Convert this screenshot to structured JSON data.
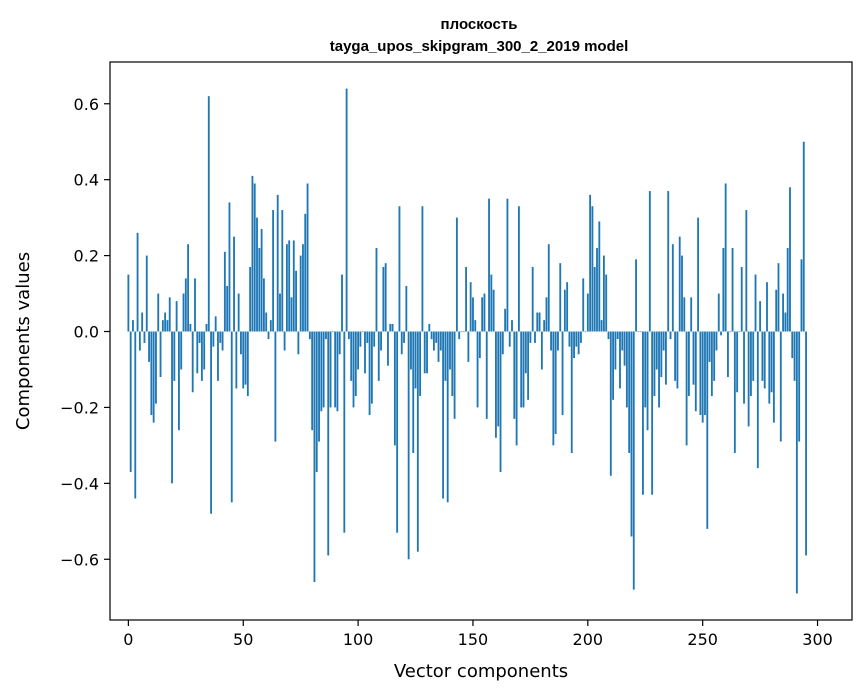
{
  "chart_data": {
    "type": "bar",
    "title": "плоскость",
    "subtitle": "tayga_upos_skipgram_300_2_2019 model",
    "xlabel": "Vector components",
    "ylabel": "Components values",
    "xlim": [
      -8,
      315
    ],
    "ylim": [
      -0.76,
      0.71
    ],
    "xticks": [
      0,
      50,
      100,
      150,
      200,
      250,
      300
    ],
    "xtick_labels": [
      "0",
      "50",
      "100",
      "150",
      "200",
      "250",
      "300"
    ],
    "yticks": [
      -0.6,
      -0.4,
      -0.2,
      0.0,
      0.2,
      0.4,
      0.6
    ],
    "ytick_labels": [
      "−0.6",
      "−0.4",
      "−0.2",
      "0.0",
      "0.2",
      "0.4",
      "0.6"
    ],
    "bar_color": "#1f77b4",
    "grid": false,
    "values": [
      0.15,
      -0.37,
      0.03,
      -0.44,
      0.26,
      -0.05,
      0.05,
      -0.03,
      0.2,
      -0.08,
      -0.22,
      -0.24,
      -0.19,
      0.1,
      -0.12,
      0.03,
      0.05,
      0.03,
      0.09,
      -0.4,
      -0.13,
      0.08,
      -0.26,
      -0.1,
      0.1,
      0.14,
      0.23,
      0.02,
      -0.16,
      0.14,
      -0.11,
      -0.03,
      -0.13,
      -0.1,
      0.02,
      0.62,
      -0.48,
      -0.04,
      0.04,
      -0.13,
      -0.03,
      -0.05,
      0.21,
      0.12,
      0.34,
      -0.45,
      0.25,
      -0.15,
      0.1,
      -0.06,
      -0.15,
      -0.14,
      -0.17,
      0.17,
      0.41,
      0.39,
      0.3,
      0.22,
      0.27,
      0.14,
      0.05,
      -0.02,
      0.03,
      0.32,
      -0.29,
      0.36,
      0.1,
      0.32,
      -0.05,
      0.23,
      0.24,
      0.09,
      0.24,
      0.16,
      -0.06,
      0.2,
      0.23,
      0.31,
      0.39,
      -0.02,
      -0.26,
      -0.66,
      -0.37,
      -0.29,
      -0.21,
      -0.2,
      -0.02,
      -0.59,
      -0.2,
      0.0,
      -0.2,
      -0.21,
      -0.06,
      0.15,
      -0.53,
      0.64,
      -0.02,
      -0.13,
      -0.2,
      -0.17,
      -0.1,
      -0.04,
      0.0,
      -0.11,
      -0.03,
      -0.22,
      -0.19,
      -0.04,
      0.22,
      -0.13,
      -0.05,
      0.17,
      0.18,
      -0.09,
      0.02,
      0.02,
      -0.3,
      -0.53,
      0.33,
      -0.06,
      -0.03,
      0.12,
      -0.6,
      -0.1,
      -0.32,
      -0.15,
      -0.58,
      -0.17,
      0.33,
      -0.11,
      -0.11,
      0.02,
      -0.02,
      -0.05,
      -0.03,
      -0.08,
      -0.05,
      -0.44,
      -0.13,
      -0.45,
      -0.1,
      -0.17,
      -0.23,
      0.3,
      -0.02,
      0.0,
      0.0,
      0.17,
      -0.08,
      0.13,
      0.09,
      0.03,
      -0.2,
      -0.07,
      0.09,
      0.1,
      -0.23,
      0.35,
      0.15,
      0.11,
      -0.28,
      -0.25,
      -0.37,
      -0.06,
      0.06,
      0.35,
      -0.04,
      0.03,
      -0.23,
      -0.3,
      0.33,
      -0.2,
      -0.2,
      -0.11,
      -0.18,
      -0.03,
      0.17,
      -0.03,
      0.05,
      0.05,
      -0.1,
      0.03,
      0.09,
      0.23,
      -0.05,
      -0.3,
      -0.27,
      -0.05,
      0.18,
      -0.22,
      0.11,
      0.13,
      -0.04,
      -0.32,
      -0.07,
      -0.04,
      -0.06,
      -0.03,
      0.14,
      0.0,
      0.1,
      0.36,
      0.33,
      0.17,
      0.22,
      0.29,
      0.03,
      0.2,
      0.15,
      -0.02,
      -0.38,
      -0.18,
      -0.1,
      -0.02,
      -0.15,
      -0.05,
      -0.09,
      -0.2,
      -0.32,
      -0.54,
      -0.68,
      0.19,
      0.0,
      0.0,
      -0.43,
      -0.2,
      -0.26,
      0.37,
      -0.43,
      -0.17,
      -0.1,
      -0.2,
      -0.12,
      -0.05,
      -0.14,
      0.37,
      -0.02,
      0.23,
      -0.13,
      -0.15,
      0.25,
      0.2,
      0.09,
      -0.3,
      -0.17,
      0.09,
      -0.14,
      -0.21,
      0.3,
      -0.22,
      -0.24,
      -0.22,
      -0.52,
      -0.08,
      -0.17,
      -0.13,
      -0.05,
      0.1,
      -0.01,
      0.22,
      0.39,
      -0.12,
      0.0,
      0.22,
      -0.32,
      -0.16,
      0.0,
      0.17,
      -0.19,
      0.32,
      -0.25,
      -0.17,
      -0.13,
      0.15,
      -0.36,
      0.08,
      -0.13,
      -0.15,
      0.13,
      -0.19,
      -0.16,
      -0.24,
      0.11,
      0.18,
      -0.29,
      0.1,
      0.05,
      0.22,
      0.38,
      -0.07,
      -0.13,
      -0.69,
      -0.29,
      0.19,
      0.5,
      -0.59
    ]
  }
}
